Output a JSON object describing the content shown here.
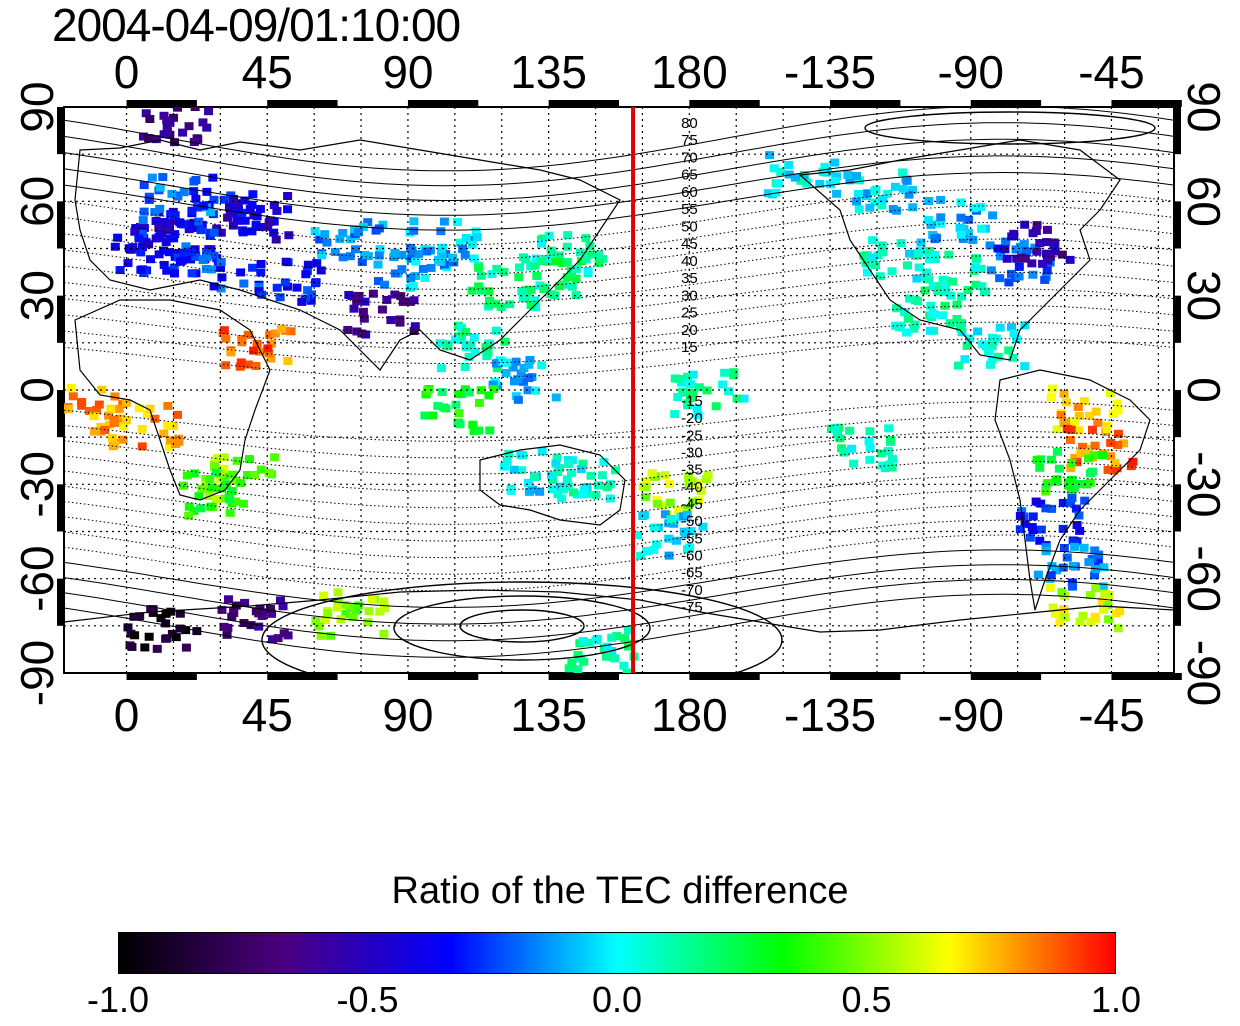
{
  "title": "2004-04-09/01:10:00",
  "map": {
    "lon_ticks": [
      "0",
      "45",
      "90",
      "135",
      "180",
      "-135",
      "-90",
      "-45"
    ],
    "lat_ticks": [
      "90",
      "60",
      "30",
      "0",
      "-30",
      "-60",
      "-90"
    ],
    "lon_range": [
      -20,
      335
    ],
    "lat_range": [
      -90,
      90
    ],
    "grid": true,
    "marker_line": {
      "lon": 162,
      "color": "#e00000"
    },
    "contour_labels_north": [
      "80",
      "75",
      "70",
      "65",
      "60",
      "55",
      "50",
      "45",
      "40",
      "35",
      "30",
      "25",
      "20",
      "15"
    ],
    "contour_labels_south": [
      "-15",
      "-20",
      "-25",
      "-30",
      "-35",
      "-40",
      "-45",
      "-50",
      "-55",
      "-60",
      "-65",
      "-70",
      "-75"
    ]
  },
  "colorbar": {
    "title": "Ratio of the TEC difference",
    "ticks": [
      "-1.0",
      "-0.5",
      "0.0",
      "0.5",
      "1.0"
    ],
    "range": [
      -1.0,
      1.0
    ],
    "stops": [
      "#000000",
      "#4b0082",
      "#0000ff",
      "#00ffff",
      "#00ff00",
      "#ffff00",
      "#ff0000"
    ]
  },
  "patches": [
    {
      "lon": 10,
      "lat": 52,
      "val": -0.5
    },
    {
      "lon": 20,
      "lat": 48,
      "val": -0.4
    },
    {
      "lon": 5,
      "lat": 45,
      "val": -0.35
    },
    {
      "lon": 30,
      "lat": 58,
      "val": -0.3
    },
    {
      "lon": 25,
      "lat": 40,
      "val": -0.25
    },
    {
      "lon": 15,
      "lat": 62,
      "val": -0.2
    },
    {
      "lon": 40,
      "lat": 56,
      "val": -0.45
    },
    {
      "lon": 50,
      "lat": 36,
      "val": -0.3
    },
    {
      "lon": 70,
      "lat": 48,
      "val": -0.15
    },
    {
      "lon": 90,
      "lat": 40,
      "val": -0.1
    },
    {
      "lon": 100,
      "lat": 48,
      "val": -0.1
    },
    {
      "lon": 120,
      "lat": 34,
      "val": 0.15
    },
    {
      "lon": 135,
      "lat": 38,
      "val": 0.2
    },
    {
      "lon": 140,
      "lat": 45,
      "val": 0.1
    },
    {
      "lon": 80,
      "lat": 25,
      "val": -0.6
    },
    {
      "lon": 110,
      "lat": 15,
      "val": 0.1
    },
    {
      "lon": 125,
      "lat": 5,
      "val": -0.1
    },
    {
      "lon": 105,
      "lat": -5,
      "val": 0.3
    },
    {
      "lon": 145,
      "lat": -28,
      "val": 0.05
    },
    {
      "lon": 130,
      "lat": -25,
      "val": 0.0
    },
    {
      "lon": 175,
      "lat": -32,
      "val": 0.55
    },
    {
      "lon": 172,
      "lat": -45,
      "val": -0.05
    },
    {
      "lon": 35,
      "lat": -27,
      "val": 0.5
    },
    {
      "lon": 25,
      "lat": -32,
      "val": 0.35
    },
    {
      "lon": 5,
      "lat": -10,
      "val": 0.8
    },
    {
      "lon": -12,
      "lat": -5,
      "val": 0.8
    },
    {
      "lon": 40,
      "lat": 15,
      "val": 0.85
    },
    {
      "lon": 215,
      "lat": 70,
      "val": 0.0
    },
    {
      "lon": 240,
      "lat": 65,
      "val": -0.05
    },
    {
      "lon": 265,
      "lat": 55,
      "val": -0.1
    },
    {
      "lon": 245,
      "lat": 42,
      "val": 0.05
    },
    {
      "lon": 265,
      "lat": 38,
      "val": 0.1
    },
    {
      "lon": 285,
      "lat": 42,
      "val": -0.2
    },
    {
      "lon": 290,
      "lat": 48,
      "val": -0.6
    },
    {
      "lon": 255,
      "lat": 25,
      "val": 0.1
    },
    {
      "lon": 275,
      "lat": 15,
      "val": 0.05
    },
    {
      "lon": 305,
      "lat": -5,
      "val": 0.75
    },
    {
      "lon": 310,
      "lat": -18,
      "val": 0.85
    },
    {
      "lon": 300,
      "lat": -25,
      "val": 0.3
    },
    {
      "lon": 295,
      "lat": -40,
      "val": -0.3
    },
    {
      "lon": 300,
      "lat": -55,
      "val": -0.2
    },
    {
      "lon": 305,
      "lat": -68,
      "val": 0.6
    },
    {
      "lon": 10,
      "lat": -75,
      "val": -0.9
    },
    {
      "lon": 40,
      "lat": -72,
      "val": -0.7
    },
    {
      "lon": 70,
      "lat": -70,
      "val": 0.5
    },
    {
      "lon": 150,
      "lat": -82,
      "val": 0.1
    },
    {
      "lon": 235,
      "lat": -17,
      "val": 0.1
    },
    {
      "lon": 185,
      "lat": 0,
      "val": 0.1
    },
    {
      "lon": 15,
      "lat": 86,
      "val": -0.65
    }
  ]
}
